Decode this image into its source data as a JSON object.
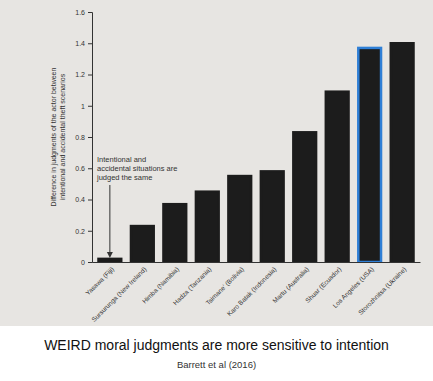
{
  "chart_data": {
    "type": "bar",
    "title": "WEIRD moral judgments are more sensitive to intention",
    "subtitle": "Barrett et al (2016)",
    "ylabel": [
      "Difference in judgments of the actor between",
      "intentional and accidental theft scenarios"
    ],
    "annotation": [
      "Intentional and",
      "accidental situations are",
      "judged the same"
    ],
    "categories": [
      "Yasawa (Fiji)",
      "Sursurunga (New Ireland)",
      "Himba (Namibia)",
      "Hadza (Tanzania)",
      "Tsimane' (Bolivia)",
      "Karo Batak (Indonesia)",
      "Martu (Australia)",
      "Shuar (Ecuador)",
      "Los Angeles (USA)",
      "Storozhnitsa (Ukraine)"
    ],
    "values": [
      0.02,
      0.23,
      0.37,
      0.45,
      0.55,
      0.58,
      0.83,
      1.09,
      1.37,
      1.4
    ],
    "colors": [
      "#1c1c1c",
      "#1c1c1c",
      "#1c1c1c",
      "#1c1c1c",
      "#1c1c1c",
      "#1c1c1c",
      "#1c1c1c",
      "#1c1c1c",
      "#2f7fd6",
      "#1c1c1c"
    ],
    "ylim": [
      0,
      1.6
    ],
    "yticks": [
      0,
      0.2,
      0.4,
      0.6,
      0.8,
      1,
      1.2,
      1.4,
      1.6
    ],
    "grid": false
  }
}
